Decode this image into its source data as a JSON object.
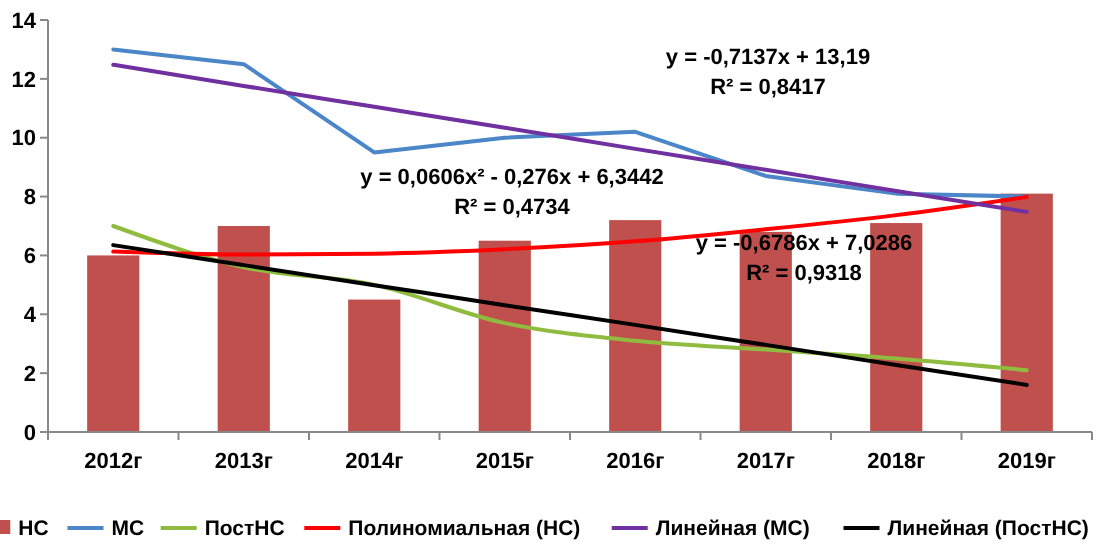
{
  "chart_data": {
    "type": "bar",
    "categories": [
      "2012г",
      "2013г",
      "2014г",
      "2015г",
      "2016г",
      "2017г",
      "2018г",
      "2019г"
    ],
    "series": [
      {
        "name": "НС",
        "color": "#c0504d",
        "values": [
          6,
          7,
          4.5,
          6.5,
          7.2,
          6.8,
          7.1,
          8.1
        ]
      },
      {
        "name": "МС",
        "type": "line",
        "color": "#4a86c8",
        "values": [
          13,
          12.5,
          9.5,
          10,
          10.2,
          8.7,
          8.1,
          8.0
        ]
      },
      {
        "name": "ПостНС",
        "type": "line",
        "color": "#8fbc3f",
        "values": [
          7,
          5.6,
          5.0,
          3.7,
          3.1,
          2.8,
          2.5,
          2.1
        ]
      },
      {
        "name": "Полиномиальная (НС)",
        "type": "line",
        "color": "#ff0000",
        "values": [
          6.13,
          6.03,
          6.06,
          6.21,
          6.48,
          6.89,
          7.37,
          7.99
        ]
      },
      {
        "name": "Линейная (МС)",
        "type": "line",
        "color": "#7030a0",
        "values": [
          12.48,
          11.76,
          11.05,
          10.34,
          9.62,
          8.91,
          8.19,
          7.48
        ]
      },
      {
        "name": "Линейная (ПостНС)",
        "type": "line",
        "color": "#000000",
        "values": [
          6.35,
          5.67,
          4.99,
          4.31,
          3.64,
          2.96,
          2.28,
          1.6
        ]
      }
    ],
    "ylim": [
      0,
      14
    ],
    "yticks": [
      0,
      2,
      4,
      6,
      8,
      10,
      12,
      14
    ],
    "grid": false,
    "legend": "bottom",
    "annotations": [
      "y = 0,0606x² - 0,276x + 6,3442\nR² = 0,4734",
      "y = -0,7137x + 13,19\nR² = 0,8417",
      "y = -0,6786x + 7,0286\nR² = 0,9318"
    ]
  }
}
